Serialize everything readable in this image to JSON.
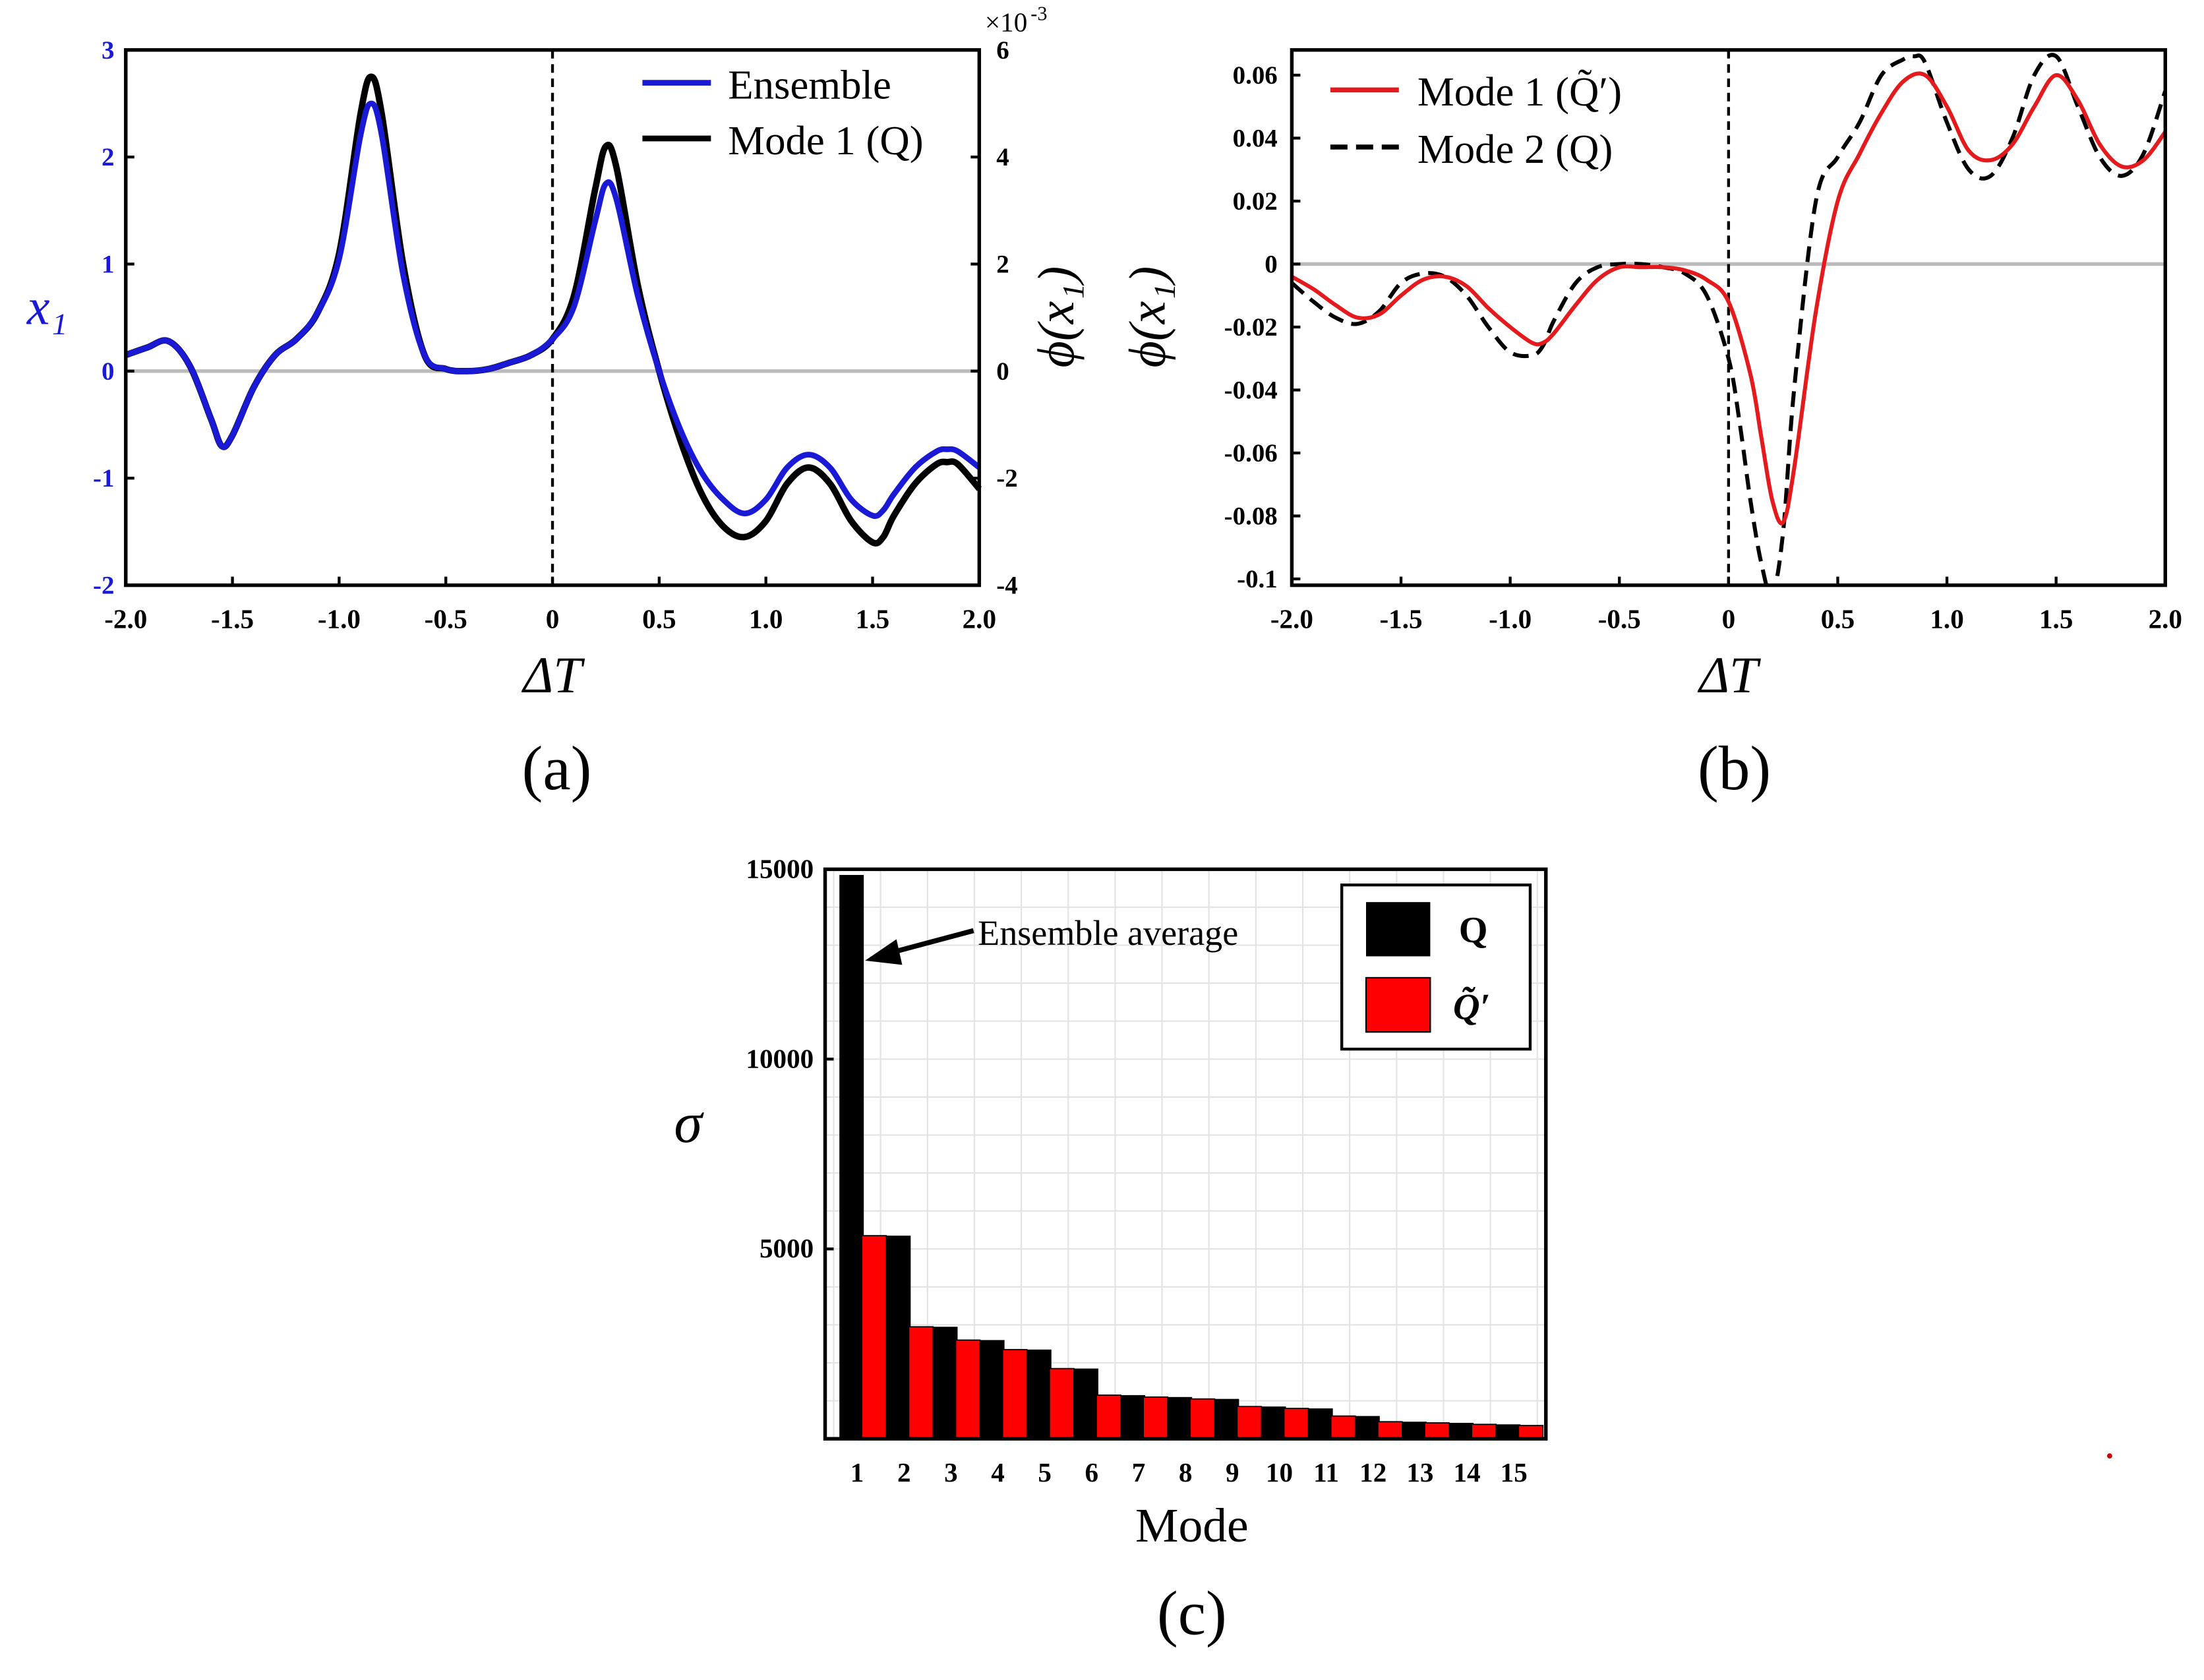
{
  "chart_data": [
    {
      "type": "line",
      "panel_label": "(a)",
      "xlabel": "ΔT",
      "ylabel_left": "x₁",
      "ylabel_right": "ϕ(x₁)",
      "right_axis_multiplier": "×10",
      "right_axis_exponent": "-3",
      "xlim": [
        -2.0,
        2.0
      ],
      "ylim_left": [
        -2,
        3
      ],
      "ylim_right": [
        -4,
        6
      ],
      "x_ticks": [
        "-2.0",
        "-1.5",
        "-1.0",
        "-0.5",
        "0",
        "0.5",
        "1.0",
        "1.5",
        "2.0"
      ],
      "y_ticks_left": [
        "-2",
        "-1",
        "0",
        "1",
        "2",
        "3"
      ],
      "y_ticks_right": [
        "-4",
        "-2",
        "0",
        "2",
        "4",
        "6"
      ],
      "legend_position": "top-right",
      "colors": {
        "ensemble": "#1a1ad6",
        "mode1": "#000000",
        "zero_line": "#bbbbbb",
        "left_axis": "#1a1ad6"
      },
      "series": [
        {
          "name": "Ensemble",
          "axis": "left",
          "x": [
            -2.0,
            -1.9,
            -1.8,
            -1.7,
            -1.6,
            -1.55,
            -1.5,
            -1.4,
            -1.3,
            -1.2,
            -1.1,
            -1.0,
            -0.9,
            -0.85,
            -0.8,
            -0.7,
            -0.6,
            -0.5,
            -0.4,
            -0.3,
            -0.2,
            -0.1,
            0.0,
            0.1,
            0.2,
            0.25,
            0.3,
            0.4,
            0.5,
            0.6,
            0.7,
            0.8,
            0.9,
            1.0,
            1.1,
            1.2,
            1.3,
            1.4,
            1.5,
            1.55,
            1.6,
            1.7,
            1.8,
            1.85,
            1.9,
            2.0
          ],
          "values": [
            0.15,
            0.22,
            0.28,
            0.05,
            -0.45,
            -0.7,
            -0.6,
            -0.15,
            0.15,
            0.3,
            0.55,
            1.05,
            2.2,
            2.5,
            2.2,
            0.9,
            0.15,
            0.02,
            0.0,
            0.02,
            0.08,
            0.15,
            0.3,
            0.6,
            1.4,
            1.75,
            1.6,
            0.7,
            0.0,
            -0.55,
            -0.95,
            -1.2,
            -1.33,
            -1.2,
            -0.9,
            -0.78,
            -0.9,
            -1.2,
            -1.35,
            -1.3,
            -1.15,
            -0.9,
            -0.75,
            -0.73,
            -0.75,
            -0.9
          ]
        },
        {
          "name": "Mode 1 (Q)",
          "axis": "left",
          "x": [
            -2.0,
            -1.9,
            -1.8,
            -1.7,
            -1.6,
            -1.55,
            -1.5,
            -1.4,
            -1.3,
            -1.2,
            -1.1,
            -1.0,
            -0.9,
            -0.85,
            -0.8,
            -0.7,
            -0.6,
            -0.5,
            -0.4,
            -0.3,
            -0.2,
            -0.1,
            0.0,
            0.1,
            0.2,
            0.25,
            0.3,
            0.4,
            0.5,
            0.6,
            0.7,
            0.8,
            0.9,
            1.0,
            1.1,
            1.2,
            1.3,
            1.4,
            1.5,
            1.55,
            1.6,
            1.7,
            1.8,
            1.85,
            1.9,
            2.0
          ],
          "values": [
            0.15,
            0.22,
            0.28,
            0.05,
            -0.45,
            -0.7,
            -0.6,
            -0.15,
            0.15,
            0.3,
            0.55,
            1.1,
            2.4,
            2.75,
            2.4,
            1.0,
            0.15,
            0.02,
            0.0,
            0.02,
            0.08,
            0.15,
            0.3,
            0.7,
            1.7,
            2.1,
            1.9,
            0.8,
            0.0,
            -0.65,
            -1.15,
            -1.45,
            -1.55,
            -1.4,
            -1.05,
            -0.9,
            -1.05,
            -1.4,
            -1.6,
            -1.55,
            -1.35,
            -1.05,
            -0.87,
            -0.85,
            -0.87,
            -1.1
          ]
        }
      ]
    },
    {
      "type": "line",
      "panel_label": "(b)",
      "xlabel": "ΔT",
      "ylabel": "ϕ(x₁)",
      "xlim": [
        -2.0,
        2.0
      ],
      "ylim": [
        -0.102,
        0.068
      ],
      "x_ticks": [
        "-2.0",
        "-1.5",
        "-1.0",
        "-0.5",
        "0",
        "0.5",
        "1.0",
        "1.5",
        "2.0"
      ],
      "y_ticks": [
        "-0.1",
        "-0.08",
        "-0.06",
        "-0.04",
        "-0.02",
        "0",
        "0.02",
        "0.04",
        "0.06"
      ],
      "legend_position": "top-left",
      "colors": {
        "mode1": "#e41a1c",
        "mode2": "#000000",
        "zero_line": "#bbbbbb"
      },
      "series": [
        {
          "name": "Mode 1 (Q̃′)",
          "style": "solid",
          "x": [
            -2.0,
            -1.9,
            -1.8,
            -1.7,
            -1.6,
            -1.5,
            -1.4,
            -1.3,
            -1.2,
            -1.1,
            -1.0,
            -0.9,
            -0.85,
            -0.8,
            -0.7,
            -0.6,
            -0.5,
            -0.4,
            -0.3,
            -0.2,
            -0.1,
            0.0,
            0.1,
            0.15,
            0.2,
            0.25,
            0.3,
            0.4,
            0.5,
            0.6,
            0.7,
            0.8,
            0.9,
            1.0,
            1.1,
            1.2,
            1.3,
            1.4,
            1.5,
            1.6,
            1.7,
            1.8,
            1.9,
            2.0
          ],
          "values": [
            -0.004,
            -0.008,
            -0.013,
            -0.017,
            -0.016,
            -0.01,
            -0.005,
            -0.004,
            -0.007,
            -0.014,
            -0.02,
            -0.025,
            -0.025,
            -0.022,
            -0.013,
            -0.005,
            -0.001,
            -0.001,
            -0.001,
            -0.002,
            -0.005,
            -0.012,
            -0.035,
            -0.055,
            -0.075,
            -0.082,
            -0.065,
            -0.015,
            0.02,
            0.035,
            0.048,
            0.058,
            0.06,
            0.05,
            0.036,
            0.033,
            0.038,
            0.05,
            0.06,
            0.052,
            0.038,
            0.031,
            0.033,
            0.042
          ]
        },
        {
          "name": "Mode 2 (Q)",
          "style": "dashed",
          "x": [
            -2.0,
            -1.9,
            -1.8,
            -1.7,
            -1.6,
            -1.5,
            -1.4,
            -1.3,
            -1.2,
            -1.1,
            -1.0,
            -0.9,
            -0.85,
            -0.8,
            -0.7,
            -0.6,
            -0.5,
            -0.4,
            -0.3,
            -0.2,
            -0.1,
            0.0,
            0.05,
            0.1,
            0.15,
            0.2,
            0.25,
            0.3,
            0.4,
            0.5,
            0.6,
            0.7,
            0.8,
            0.85,
            0.9,
            1.0,
            1.1,
            1.2,
            1.3,
            1.4,
            1.5,
            1.6,
            1.7,
            1.8,
            1.9,
            2.0
          ],
          "values": [
            -0.006,
            -0.012,
            -0.017,
            -0.019,
            -0.015,
            -0.006,
            -0.003,
            -0.004,
            -0.01,
            -0.02,
            -0.028,
            -0.029,
            -0.026,
            -0.018,
            -0.006,
            -0.001,
            0.0,
            0.0,
            -0.001,
            -0.003,
            -0.01,
            -0.03,
            -0.05,
            -0.075,
            -0.095,
            -0.105,
            -0.085,
            -0.04,
            0.02,
            0.034,
            0.045,
            0.06,
            0.065,
            0.066,
            0.064,
            0.045,
            0.03,
            0.028,
            0.04,
            0.06,
            0.066,
            0.05,
            0.034,
            0.028,
            0.035,
            0.055
          ]
        }
      ]
    },
    {
      "type": "bar",
      "panel_label": "(c)",
      "xlabel": "Mode",
      "ylabel": "σ",
      "ylim": [
        0,
        15000
      ],
      "y_ticks": [
        "5000",
        "10000",
        "15000"
      ],
      "categories": [
        "1",
        "2",
        "3",
        "4",
        "5",
        "6",
        "7",
        "8",
        "9",
        "10",
        "11",
        "12",
        "13",
        "14",
        "15"
      ],
      "grid": true,
      "legend_position": "top-right",
      "annotation": "Ensemble average",
      "colors": {
        "Q": "#000000",
        "Qtilde": "#ff0000"
      },
      "series": [
        {
          "name": "Q",
          "values": [
            14850,
            5350,
            2950,
            2600,
            2350,
            1850,
            1150,
            1100,
            1050,
            850,
            800,
            600,
            450,
            420,
            380
          ]
        },
        {
          "name": "Q̃′",
          "values": [
            5350,
            2950,
            2600,
            2350,
            1850,
            1150,
            1100,
            1050,
            850,
            800,
            600,
            450,
            420,
            380,
            350
          ]
        }
      ]
    }
  ]
}
